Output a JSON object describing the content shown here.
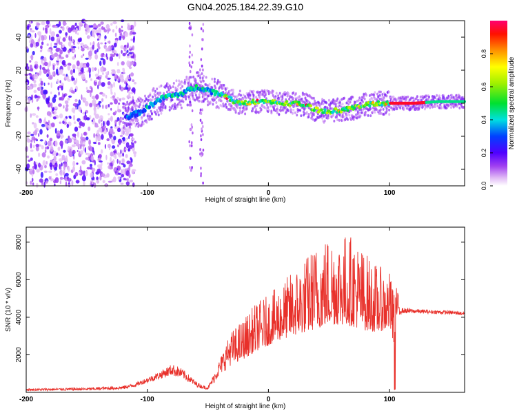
{
  "page_title": "GN04.2025.184.22.39.G10",
  "chart_data": [
    {
      "type": "heatmap",
      "title": "GN04.2025.184.22.39.G10",
      "xlabel": "Height of straight line (km)",
      "ylabel": "Frequency (Hz)",
      "xlim": [
        -200,
        162
      ],
      "ylim": [
        -50,
        50
      ],
      "x_ticks": [
        -200,
        -100,
        0,
        100
      ],
      "y_ticks": [
        -40,
        -20,
        0,
        20,
        40
      ],
      "grid": false,
      "colormap": "rainbow (magenta-violet-blue-cyan-green-yellow-orange-red)",
      "colorbar": {
        "label": "Normalized spectral amplitude",
        "range": [
          0,
          1
        ],
        "ticks": [
          0.0,
          0.2,
          0.4,
          0.6,
          0.8
        ]
      },
      "ridge": {
        "x": [
          -115,
          -105,
          -95,
          -85,
          -75,
          -65,
          -58,
          -50,
          -42,
          -35,
          -28,
          -20,
          -10,
          0,
          10,
          20,
          30,
          40,
          50,
          60,
          70,
          80,
          90,
          100,
          120,
          140,
          162
        ],
        "y": [
          -8,
          -5,
          0,
          4,
          5,
          8,
          10,
          8,
          6,
          4,
          1,
          0,
          1,
          1,
          0,
          0,
          -1,
          -4,
          -5,
          -4,
          -3,
          -1,
          0,
          0,
          0,
          1,
          1
        ]
      },
      "noise_region_x": [
        -200,
        -110
      ]
    },
    {
      "type": "line",
      "xlabel": "Height of straight line (km)",
      "ylabel": "SNR (10 * v/v)",
      "xlim": [
        -200,
        162
      ],
      "ylim": [
        0,
        8800
      ],
      "x_ticks": [
        -200,
        -100,
        0,
        100
      ],
      "y_ticks": [
        2000,
        4000,
        6000,
        8000
      ],
      "grid": false,
      "color": "#e8302a",
      "series": [
        {
          "x": [
            -200,
            -150,
            -120,
            -110,
            -100,
            -90,
            -85,
            -80,
            -75,
            -70,
            -65,
            -60,
            -55,
            -50,
            -45,
            -40,
            -35,
            -30,
            -20,
            -10,
            0,
            10,
            20,
            30,
            40,
            50,
            60,
            70,
            80,
            90,
            100,
            103,
            105,
            110,
            130,
            150,
            162
          ],
          "envelope_low": [
            80,
            100,
            150,
            300,
            500,
            700,
            800,
            900,
            800,
            700,
            500,
            300,
            200,
            150,
            500,
            900,
            1200,
            1500,
            1800,
            2200,
            2500,
            2800,
            3000,
            3200,
            3400,
            3600,
            3600,
            3500,
            3300,
            3200,
            3400,
            2000,
            3600,
            4200,
            4200,
            4150,
            4100
          ],
          "envelope_high": [
            200,
            250,
            350,
            500,
            800,
            1100,
            1300,
            1500,
            1400,
            1200,
            900,
            600,
            400,
            300,
            1000,
            1800,
            2600,
            3300,
            4000,
            4800,
            5200,
            5800,
            6500,
            7200,
            8000,
            8500,
            8600,
            8400,
            7500,
            6800,
            6400,
            5500,
            5800,
            4500,
            4400,
            4350,
            4300
          ]
        }
      ]
    }
  ]
}
